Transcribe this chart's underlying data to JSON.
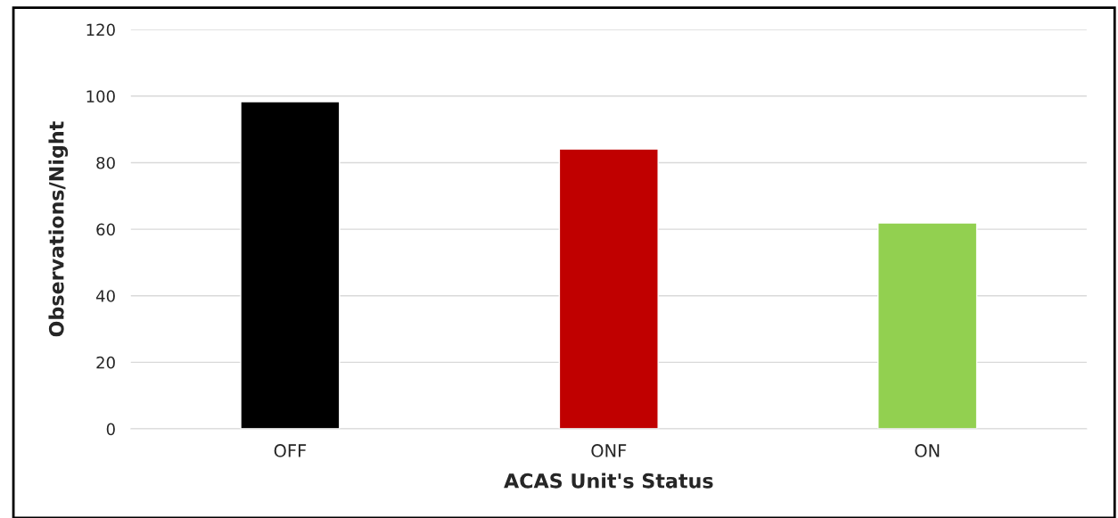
{
  "chart_data": {
    "type": "bar",
    "xlabel": "ACAS Unit's Status",
    "ylabel": "Observations/Night",
    "categories": [
      "OFF",
      "ONF",
      "ON"
    ],
    "values": [
      98.3,
      84.1,
      61.9
    ],
    "colors": [
      "#000000",
      "#c00000",
      "#92d050"
    ],
    "ylim": [
      0,
      120
    ],
    "yticks": [
      0,
      20,
      40,
      60,
      80,
      100,
      120
    ],
    "grid": "y"
  }
}
